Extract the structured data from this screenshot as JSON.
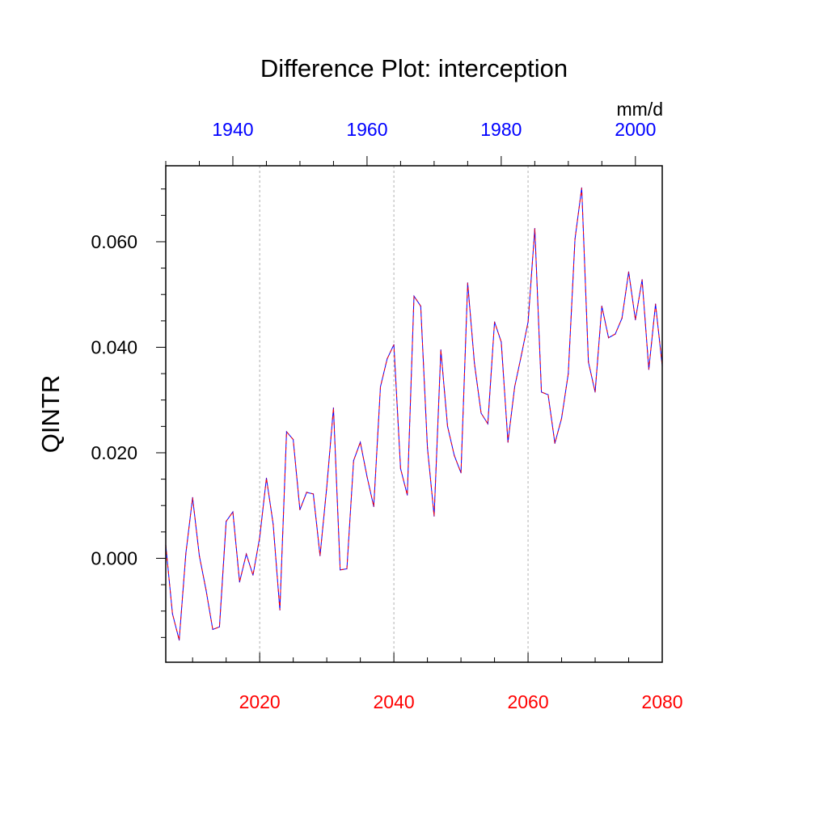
{
  "chart_data": {
    "type": "line",
    "title": "Difference Plot: interception",
    "ylabel": "QINTR",
    "units_label": "mm/d",
    "bottom_axis": {
      "ticks": [
        "2020",
        "2040",
        "2060",
        "2080"
      ],
      "tick_values": [
        2020,
        2040,
        2060,
        2080
      ],
      "range": [
        2006,
        2080
      ],
      "color": "#ff0000"
    },
    "top_axis": {
      "ticks": [
        "1940",
        "1960",
        "1980",
        "2000"
      ],
      "tick_values": [
        1940,
        1960,
        1980,
        2000
      ],
      "range": [
        1930,
        2004
      ],
      "color": "#0000ff"
    },
    "y_axis": {
      "ticks": [
        "0.000",
        "0.020",
        "0.040",
        "0.060"
      ],
      "tick_values": [
        0.0,
        0.02,
        0.04,
        0.06
      ],
      "range": [
        -0.0197,
        0.0744
      ]
    },
    "grid": "vertical dashed at bottom-axis major ticks",
    "series": [
      {
        "style": "dashed red over blue",
        "x": [
          2006,
          2007,
          2008,
          2009,
          2010,
          2011,
          2012,
          2013,
          2014,
          2015,
          2016,
          2017,
          2018,
          2019,
          2020,
          2021,
          2022,
          2023,
          2024,
          2025,
          2026,
          2027,
          2028,
          2029,
          2030,
          2031,
          2032,
          2033,
          2034,
          2035,
          2036,
          2037,
          2038,
          2039,
          2040,
          2041,
          2042,
          2043,
          2044,
          2045,
          2046,
          2047,
          2048,
          2049,
          2050,
          2051,
          2052,
          2053,
          2054,
          2055,
          2056,
          2057,
          2058,
          2059,
          2060,
          2061,
          2062,
          2063,
          2064,
          2065,
          2066,
          2067,
          2068,
          2069,
          2070,
          2071,
          2072,
          2073,
          2074,
          2075,
          2076,
          2077,
          2078,
          2079,
          2080
        ],
        "values": [
          0.0025,
          -0.0105,
          -0.0155,
          0.001,
          0.0115,
          0.0005,
          -0.006,
          -0.0135,
          -0.013,
          0.007,
          0.0088,
          -0.0045,
          0.0008,
          -0.0032,
          0.004,
          0.0152,
          0.0065,
          -0.0098,
          0.024,
          0.0225,
          0.0092,
          0.0125,
          0.0122,
          0.0005,
          0.0135,
          0.0285,
          -0.0022,
          -0.002,
          0.0185,
          0.022,
          0.0155,
          0.0098,
          0.0325,
          0.0378,
          0.0405,
          0.017,
          0.012,
          0.0497,
          0.0478,
          0.021,
          0.008,
          0.0395,
          0.025,
          0.0195,
          0.0162,
          0.0522,
          0.037,
          0.0275,
          0.0255,
          0.0448,
          0.041,
          0.022,
          0.0325,
          0.0385,
          0.0448,
          0.0625,
          0.0315,
          0.031,
          0.0218,
          0.0265,
          0.035,
          0.0605,
          0.0702,
          0.0372,
          0.0315,
          0.0478,
          0.0418,
          0.0425,
          0.0455,
          0.0543,
          0.0452,
          0.0528,
          0.0358,
          0.0482,
          0.0365
        ]
      }
    ]
  }
}
